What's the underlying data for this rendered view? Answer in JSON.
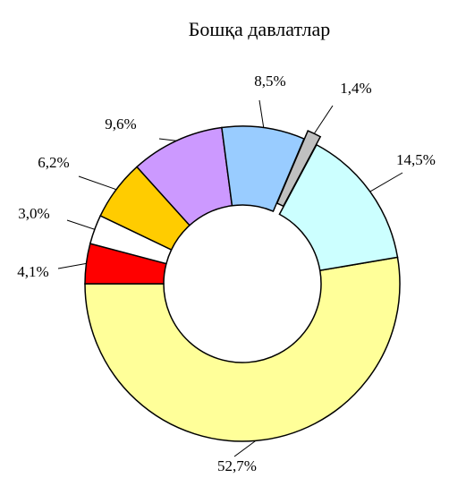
{
  "chart_data": {
    "type": "donut",
    "title": "Бошқа давлатлар",
    "categories": [
      null,
      null,
      null,
      null,
      null,
      null,
      null,
      null
    ],
    "values": [
      52.7,
      4.1,
      3.0,
      6.2,
      9.6,
      8.5,
      1.4,
      14.5
    ],
    "value_labels": [
      "52,7%",
      "4,1%",
      "3,0%",
      "6,2%",
      "9,6%",
      "8,5%",
      "1,4%",
      "14,5%"
    ],
    "colors": [
      "#ffff99",
      "#ff0000",
      "#ffffff",
      "#ffcc00",
      "#cc99ff",
      "#99ccff",
      "#c0c0c0",
      "#ccffff"
    ]
  }
}
